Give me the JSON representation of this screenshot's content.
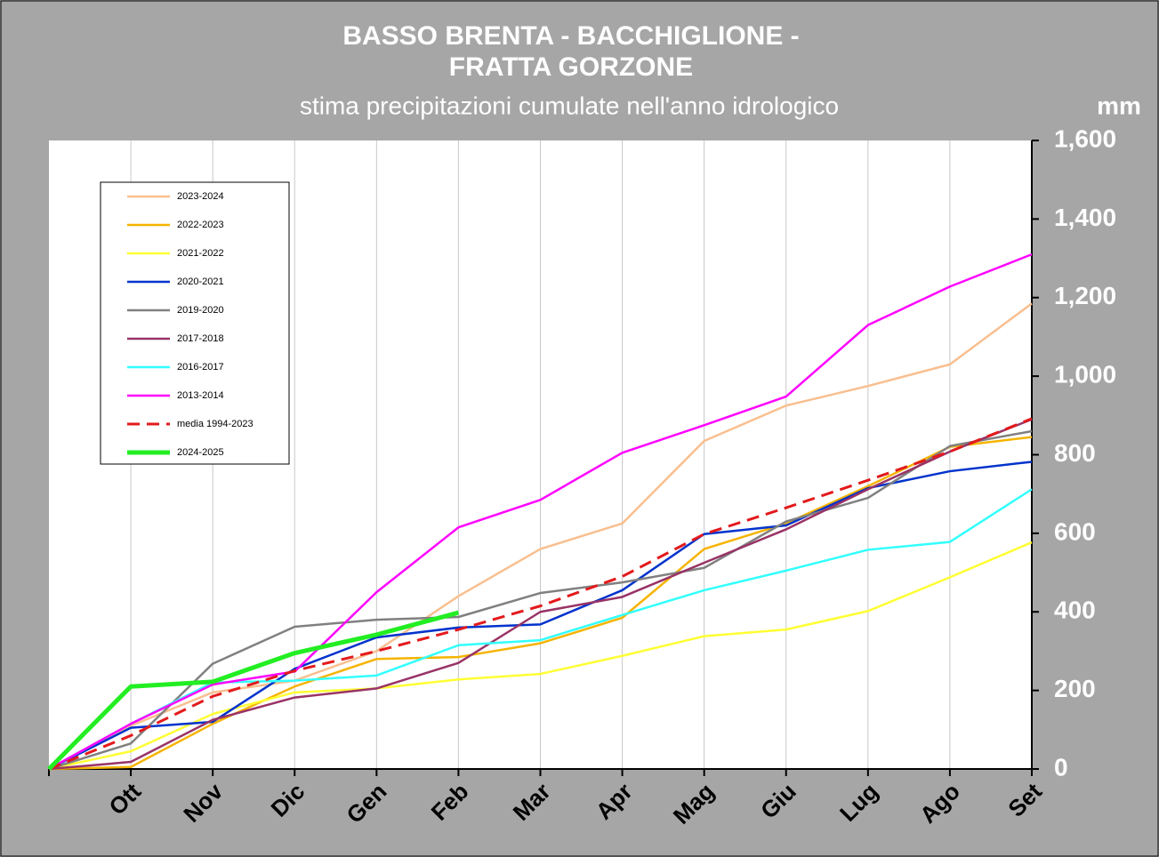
{
  "chart_data": {
    "type": "line",
    "title": "BASSO BRENTA - BACCHIGLIONE -",
    "title_line2": "FRATTA GORZONE",
    "subtitle": "stima precipitazioni cumulate nell'anno idrologico",
    "y_label": "mm",
    "categories": [
      null,
      "Ott",
      "Nov",
      "Dic",
      "Gen",
      "Feb",
      "Mar",
      "Apr",
      "Mag",
      "Giu",
      "Lug",
      "Ago",
      "Set"
    ],
    "ylim": [
      0,
      1600
    ],
    "yticks": [
      0,
      200,
      400,
      600,
      800,
      {
        "value": 1000,
        "label": "1,000"
      },
      {
        "value": 1200,
        "label": "1,200"
      },
      {
        "value": 1400,
        "label": "1,400"
      },
      {
        "value": 1600,
        "label": "1,600"
      }
    ],
    "grid": true,
    "legend": "upper left",
    "series": [
      {
        "name": "2023-2024",
        "color": "#f9bf8f",
        "values": [
          0,
          110,
          195,
          225,
          300,
          440,
          560,
          625,
          835,
          925,
          975,
          1030,
          1185
        ]
      },
      {
        "name": "2022-2023",
        "color": "#f5b400",
        "values": [
          0,
          5,
          115,
          210,
          280,
          285,
          320,
          385,
          560,
          625,
          720,
          820,
          845
        ]
      },
      {
        "name": "2021-2022",
        "color": "#ffff33",
        "values": [
          0,
          45,
          140,
          195,
          205,
          228,
          242,
          288,
          338,
          355,
          402,
          488,
          577
        ]
      },
      {
        "name": "2020-2021",
        "color": "#0033cc",
        "values": [
          0,
          105,
          120,
          255,
          335,
          360,
          368,
          455,
          598,
          620,
          715,
          758,
          782
        ]
      },
      {
        "name": "2019-2020",
        "color": "#808080",
        "values": [
          0,
          65,
          268,
          362,
          380,
          387,
          448,
          475,
          512,
          630,
          690,
          822,
          860
        ]
      },
      {
        "name": "2017-2018",
        "color": "#993366",
        "values": [
          0,
          18,
          125,
          182,
          205,
          270,
          400,
          438,
          525,
          610,
          712,
          808,
          890
        ]
      },
      {
        "name": "2016-2017",
        "color": "#33ffff",
        "values": [
          0,
          115,
          220,
          225,
          238,
          315,
          328,
          392,
          455,
          505,
          558,
          578,
          712
        ]
      },
      {
        "name": "2013-2014",
        "color": "#ff00ff",
        "values": [
          0,
          115,
          215,
          248,
          450,
          615,
          685,
          805,
          875,
          948,
          1130,
          1228,
          1310
        ]
      },
      {
        "name": "media 1994-2023",
        "color": "#e31a1c",
        "style": "dashed",
        "values": [
          0,
          85,
          185,
          250,
          300,
          355,
          415,
          490,
          598,
          665,
          735,
          808,
          892
        ]
      },
      {
        "name": "2024-2025",
        "color": "#22ee22",
        "style": "thick",
        "values": [
          0,
          210,
          222,
          295,
          342,
          398,
          null,
          null,
          null,
          null,
          null,
          null,
          null
        ]
      }
    ]
  }
}
